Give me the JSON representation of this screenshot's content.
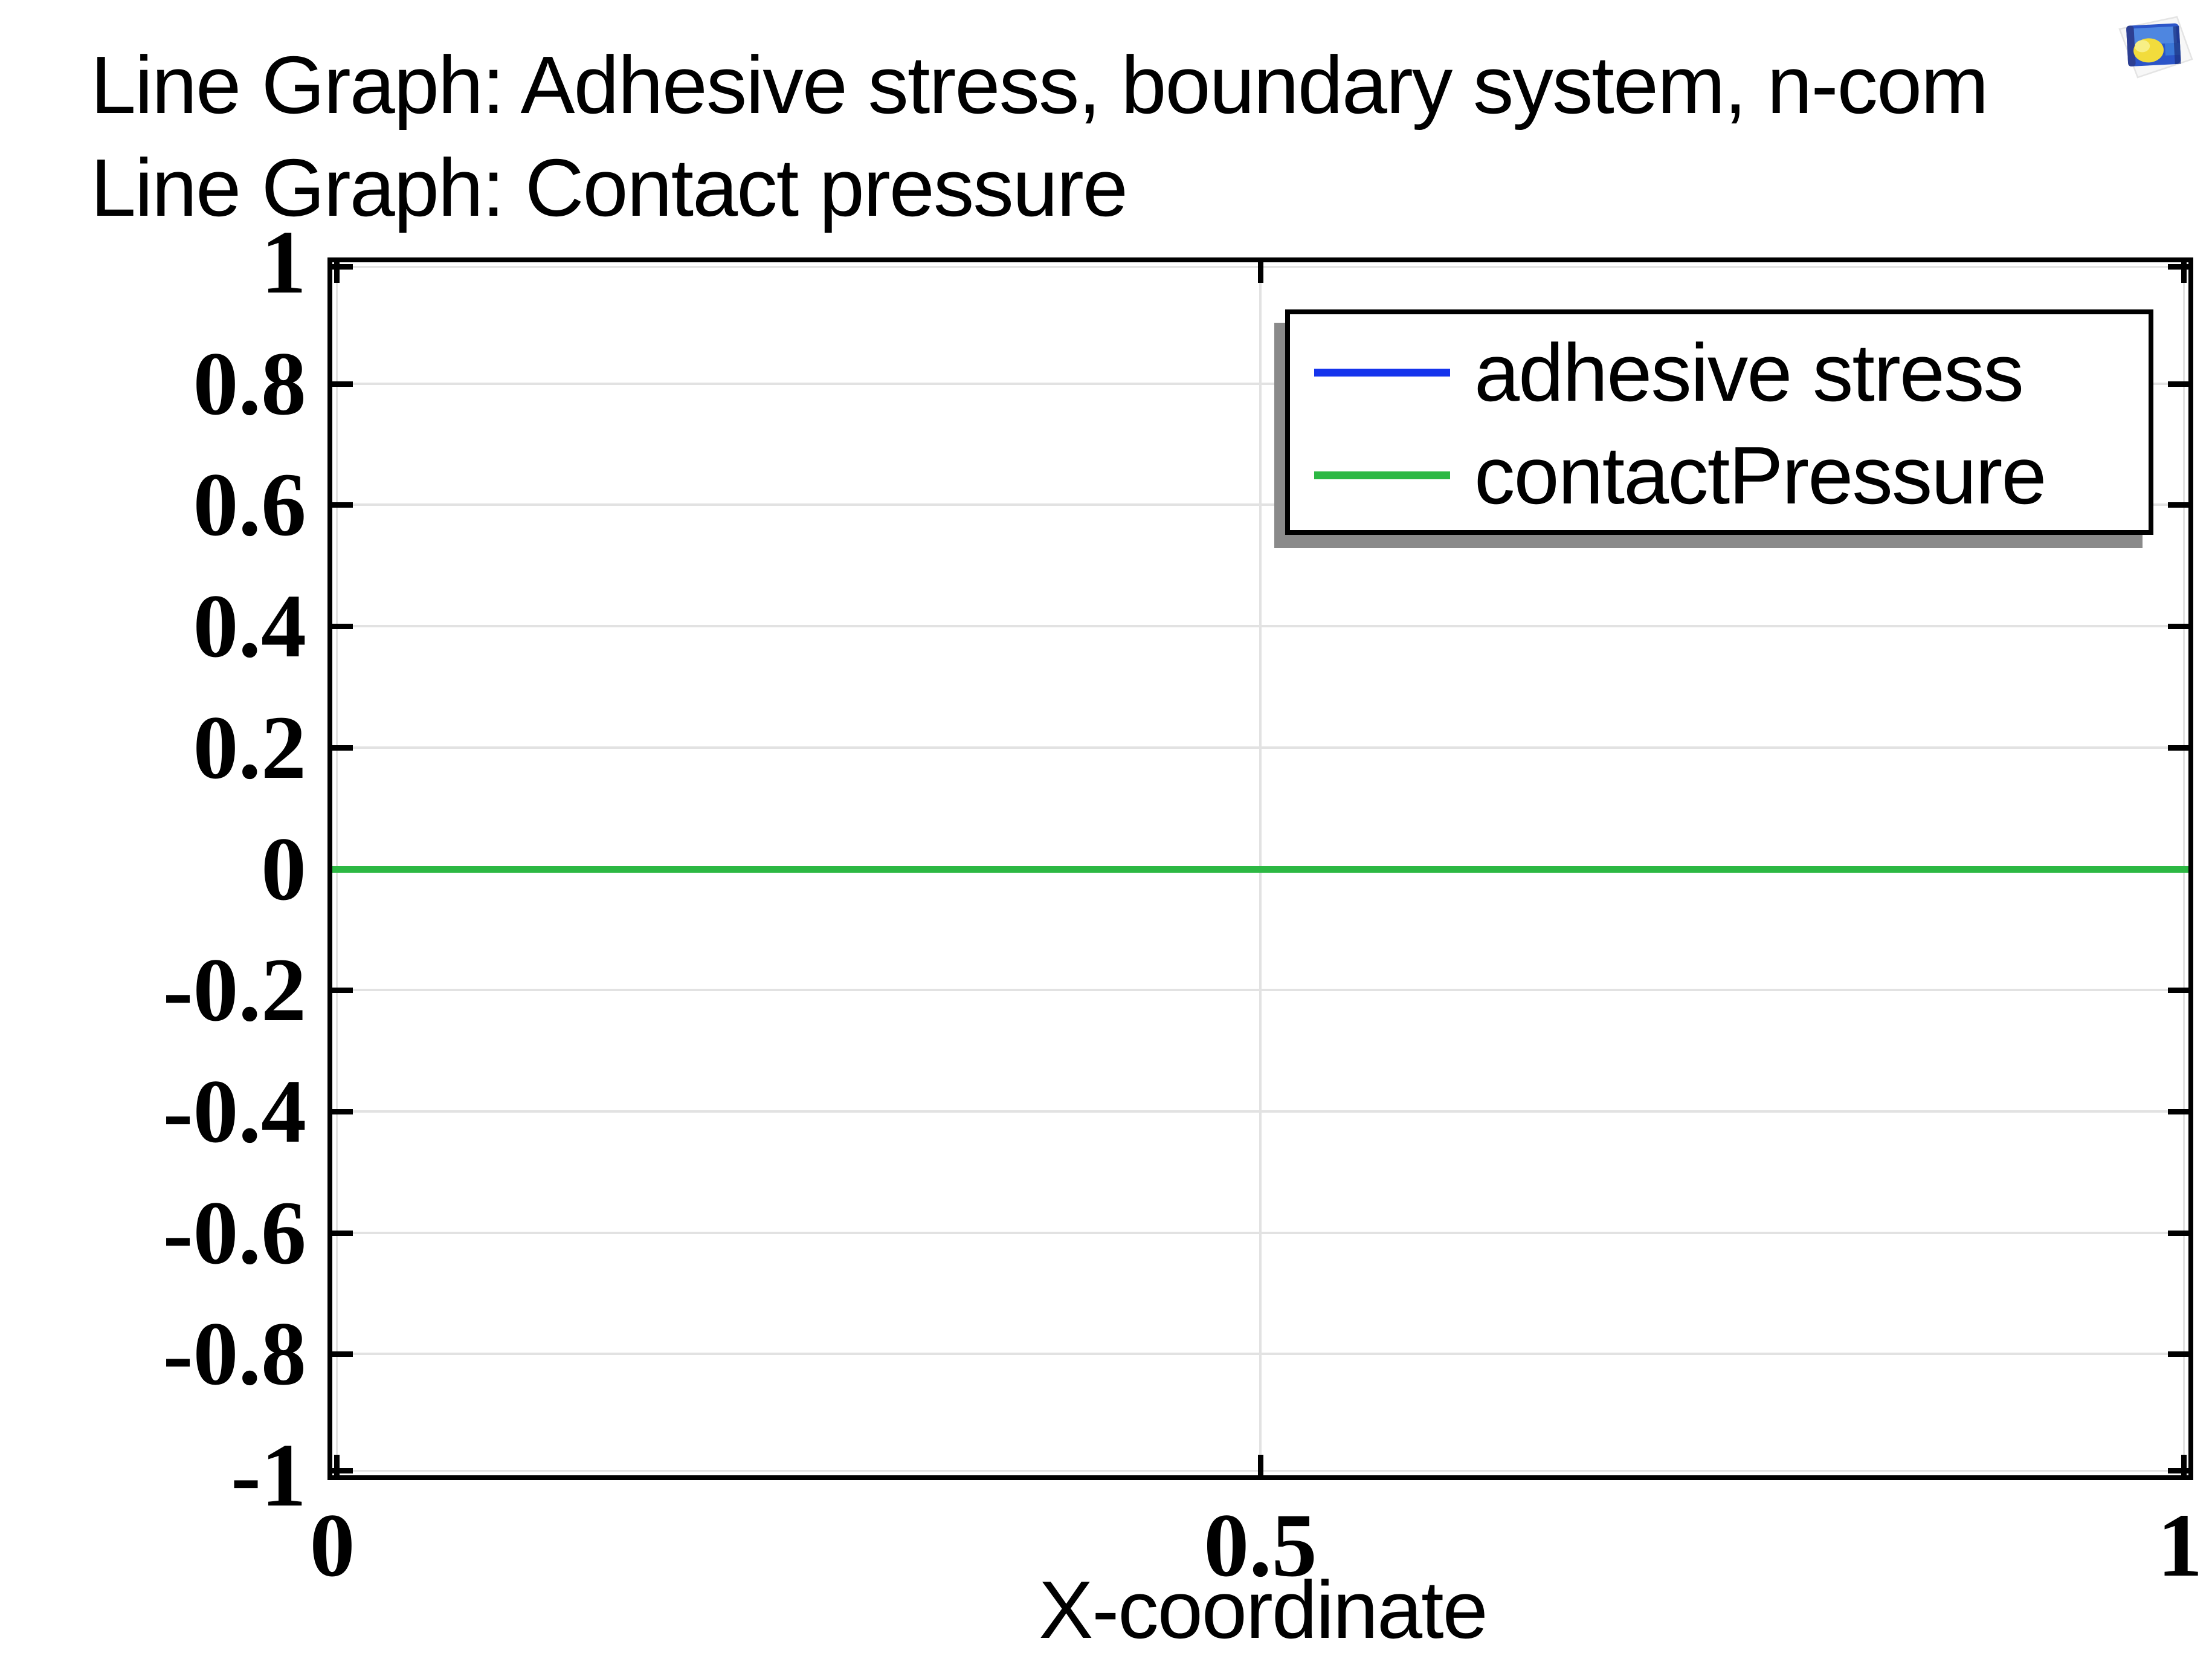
{
  "titles": {
    "line1": "Line Graph: Adhesive stress, boundary system, n-com",
    "line2": "Line Graph: Contact pressure"
  },
  "icons": {
    "top_right": "plot-thumbnail-icon"
  },
  "colors": {
    "axis": "#000000",
    "grid": "#e2e2e2",
    "legend_shadow": "#8a8a8a",
    "accent_blue": "#1534ec",
    "accent_green": "#2cb843",
    "background": "#ffffff"
  },
  "chart_data": {
    "type": "line",
    "title": "Line Graph: Adhesive stress, boundary system, n-com",
    "subtitle": "Line Graph: Contact pressure",
    "xlabel": "X-coordinate",
    "ylabel": "",
    "xlim": [
      0,
      1
    ],
    "ylim": [
      -1,
      1
    ],
    "x_ticks": [
      0,
      0.5,
      1
    ],
    "x_tick_labels": [
      "0",
      "0.5",
      "1"
    ],
    "y_ticks": [
      1,
      0.8,
      0.6,
      0.4,
      0.2,
      0,
      -0.2,
      -0.4,
      -0.6,
      -0.8,
      -1
    ],
    "y_tick_labels": [
      "1",
      "0.8",
      "0.6",
      "0.4",
      "0.2",
      "0",
      "-0.2",
      "-0.4",
      "-0.6",
      "-0.8",
      "-1"
    ],
    "grid": true,
    "legend_position": "top-right",
    "series": [
      {
        "name": "adhesive stress",
        "color": "#1534ec",
        "x": [
          0,
          1
        ],
        "y": [
          0,
          0
        ]
      },
      {
        "name": "contactPressure",
        "color": "#2cb843",
        "x": [
          0,
          1
        ],
        "y": [
          0,
          0
        ]
      }
    ]
  }
}
